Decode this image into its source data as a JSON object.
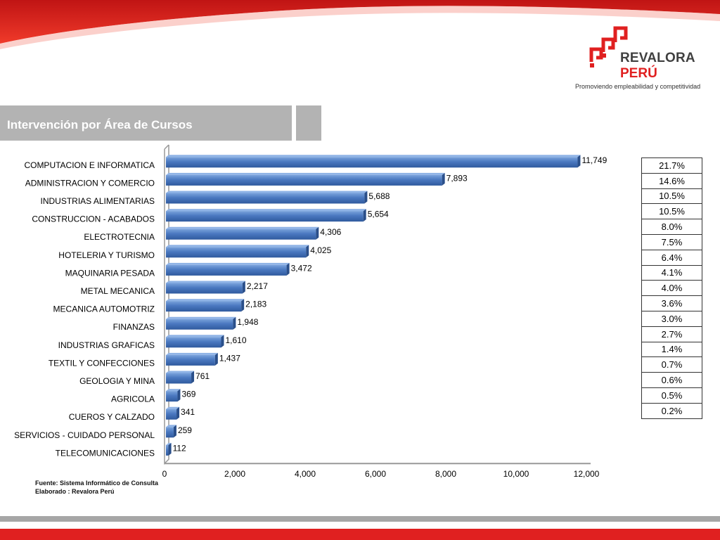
{
  "brand": {
    "name_line1": "REVALORA",
    "name_line2": "PERÚ",
    "tagline": "Promoviendo empleabilidad y competitividad",
    "red": "#e02020",
    "gray": "#b3b3b3"
  },
  "header": {
    "title": "Intervención por Área de Cursos"
  },
  "chart_data": {
    "type": "bar",
    "orientation": "horizontal",
    "title": "Intervención por Área de Cursos",
    "categories": [
      "COMPUTACION E INFORMATICA",
      "ADMINISTRACION Y COMERCIO",
      "INDUSTRIAS ALIMENTARIAS",
      "CONSTRUCCION - ACABADOS",
      "ELECTROTECNIA",
      "HOTELERIA Y TURISMO",
      "MAQUINARIA PESADA",
      "METAL MECANICA",
      "MECANICA AUTOMOTRIZ",
      "FINANZAS",
      "INDUSTRIAS GRAFICAS",
      "TEXTIL Y CONFECCIONES",
      "GEOLOGIA Y MINA",
      "AGRICOLA",
      "CUEROS Y CALZADO",
      "SERVICIOS - CUIDADO PERSONAL",
      "TELECOMUNICACIONES"
    ],
    "values": [
      11749,
      7893,
      5688,
      5654,
      4306,
      4025,
      3472,
      2217,
      2183,
      1948,
      1610,
      1437,
      761,
      369,
      341,
      259,
      112
    ],
    "value_labels": [
      "11,749",
      "7,893",
      "5,688",
      "5,654",
      "4,306",
      "4,025",
      "3,472",
      "2,217",
      "2,183",
      "1,948",
      "1,610",
      "1,437",
      "761",
      "369",
      "341",
      "259",
      "112"
    ],
    "xlim": [
      0,
      12000
    ],
    "xticks": [
      0,
      2000,
      4000,
      6000,
      8000,
      10000,
      12000
    ],
    "xtick_labels": [
      "0",
      "2,000",
      "4,000",
      "6,000",
      "8,000",
      "10,000",
      "12,000"
    ],
    "bar_color": "#4a78c0",
    "grid": false
  },
  "percentages": [
    "21.7%",
    "14.6%",
    "10.5%",
    "10.5%",
    "8.0%",
    "7.5%",
    "6.4%",
    "4.1%",
    "4.0%",
    "3.6%",
    "3.0%",
    "2.7%",
    "1.4%",
    "0.7%",
    "0.6%",
    "0.5%",
    "0.2%"
  ],
  "footnote": {
    "source": "Fuente: Sistema Informático de Consulta",
    "author": "Elaborado :  Revalora Perú"
  }
}
